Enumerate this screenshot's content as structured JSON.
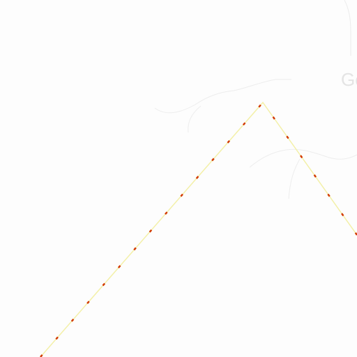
{
  "map": {
    "place_label": "Ge",
    "colors": {
      "background": "#fdfdfd",
      "faint_feature": "#ececec",
      "route_base": "#f3f0a8",
      "route_dash": "#d23a00",
      "place_label": "#e4e4e4"
    }
  }
}
